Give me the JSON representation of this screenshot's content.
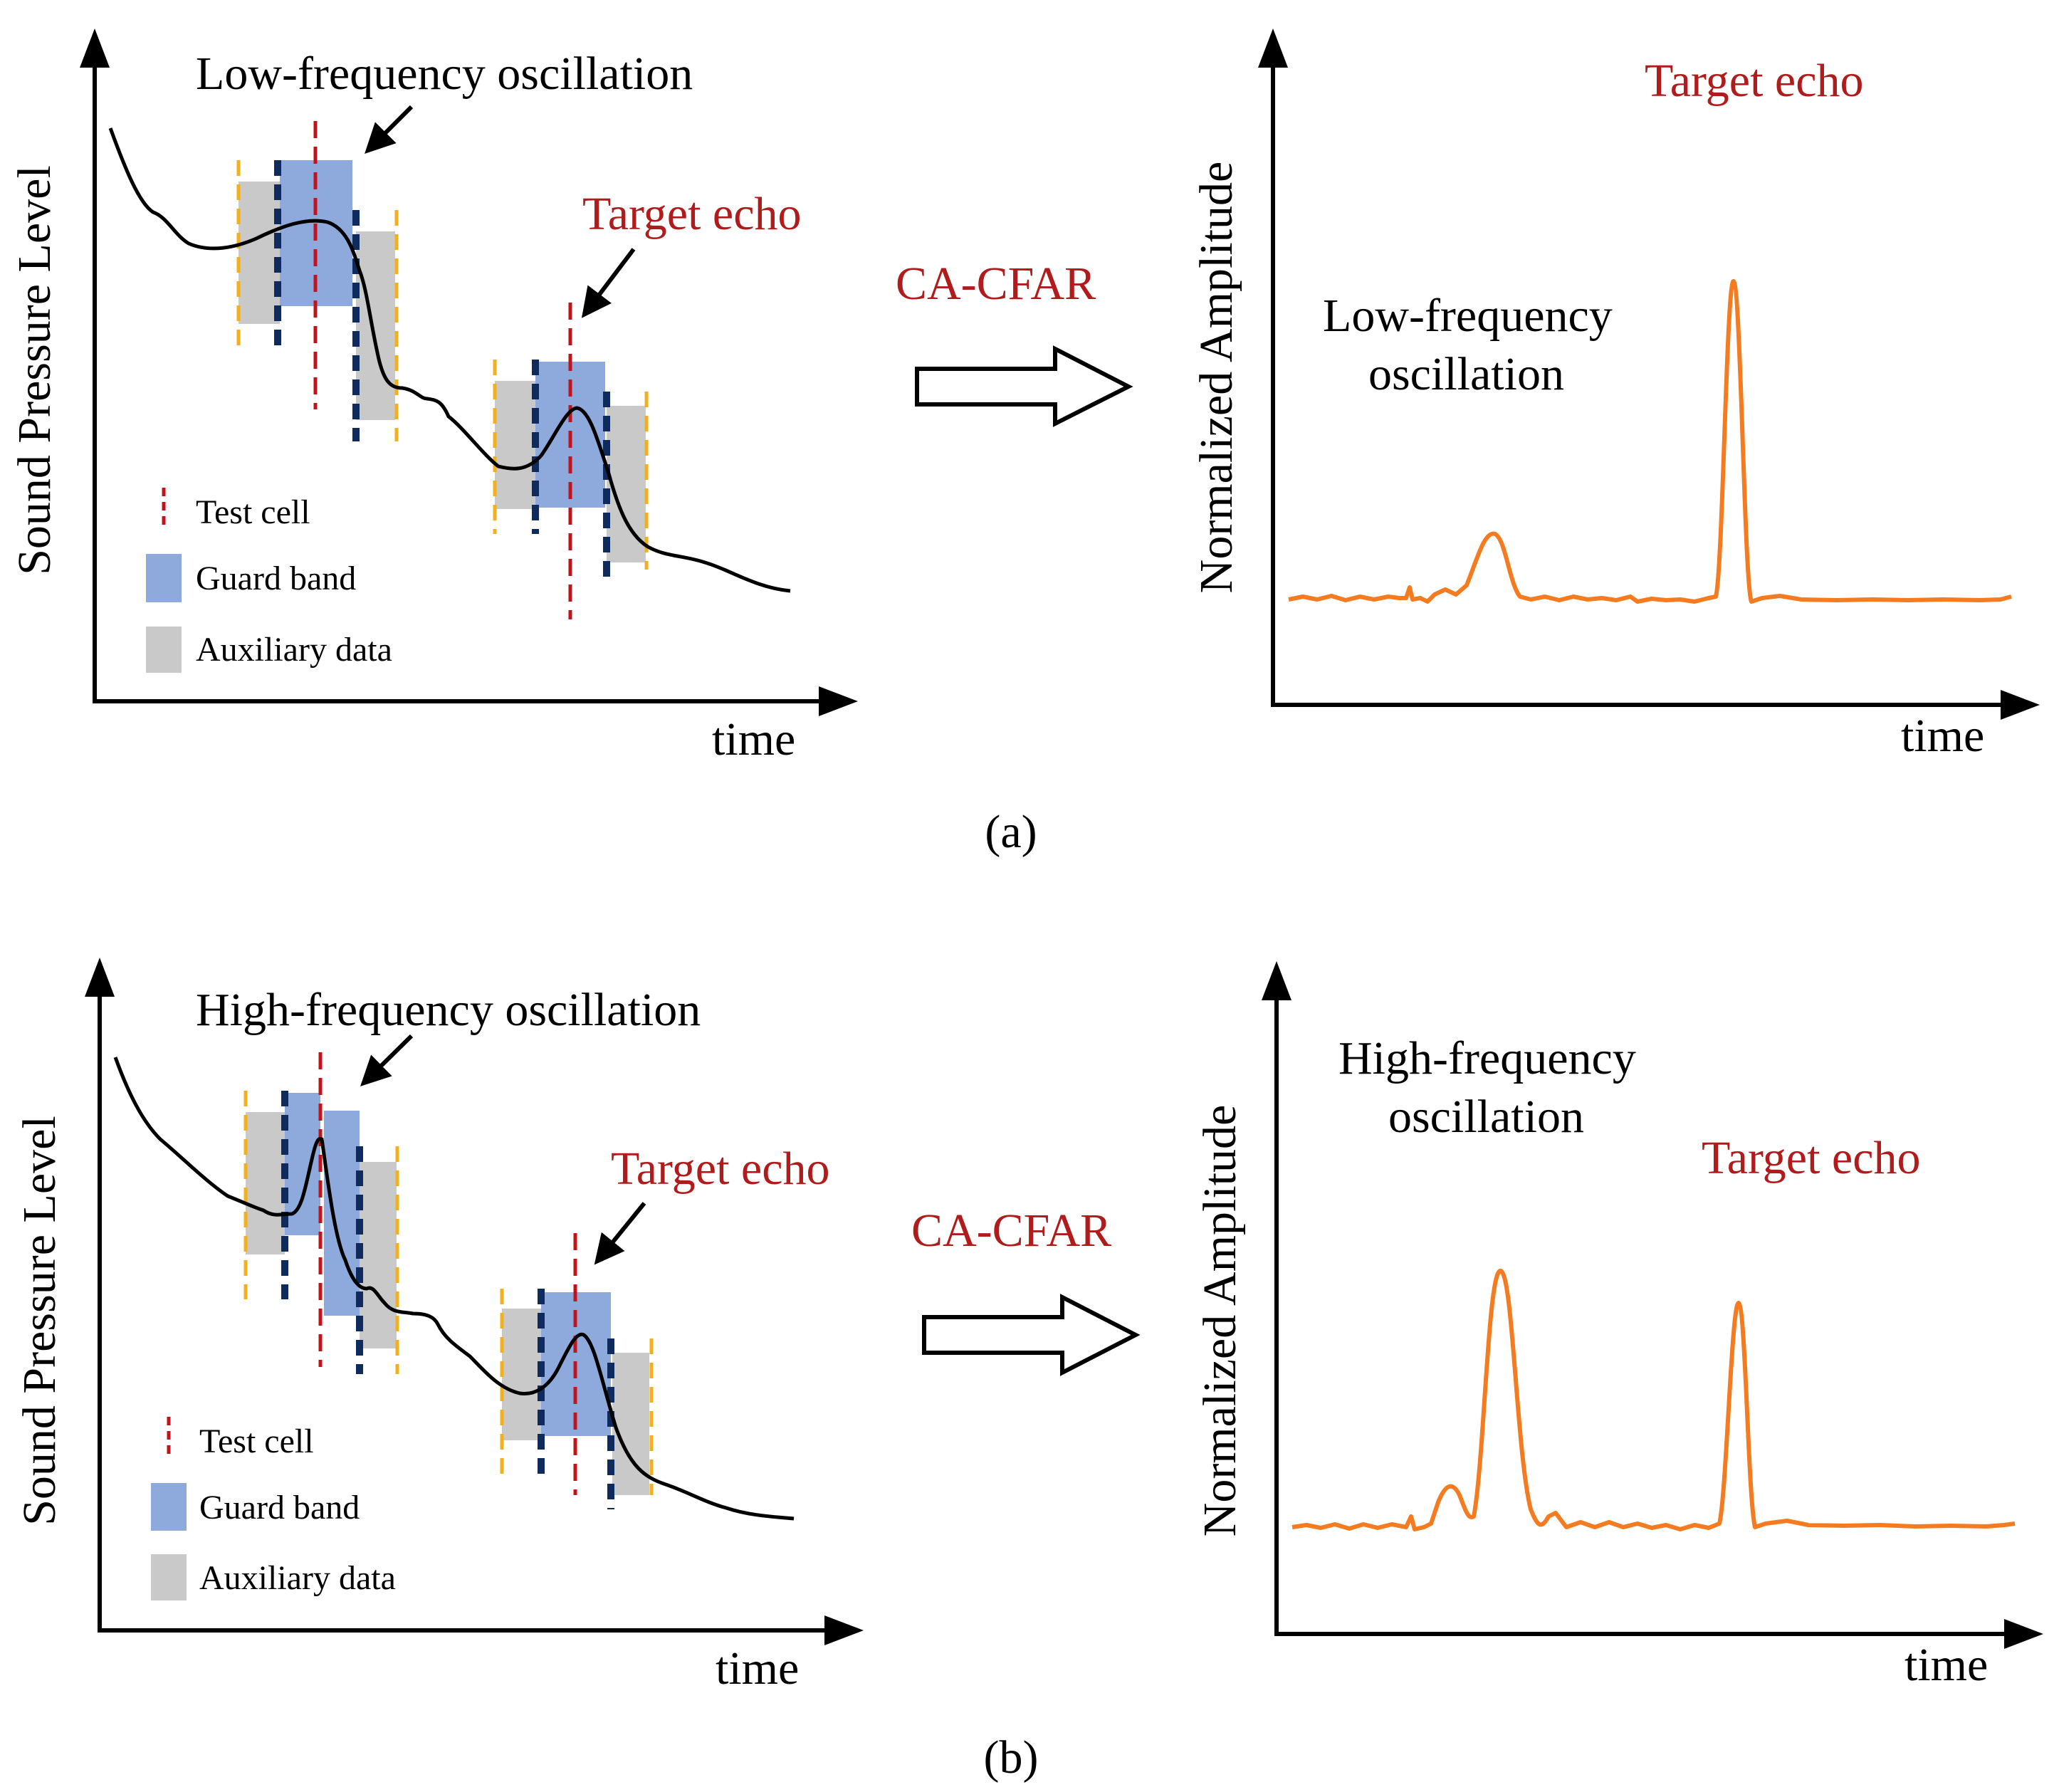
{
  "colors": {
    "guard": "#8eaadc",
    "auxiliary": "#c9c9c9",
    "test_cell": "#c0141c",
    "guard_edge": "#0f2a5c",
    "aux_edge": "#f2b01c",
    "output_curve": "#f47b20",
    "input_curve": "#000000",
    "red_text": "#b01c1c"
  },
  "panels": [
    {
      "caption": "(a)",
      "input": {
        "ylabel": "Sound Pressure Level",
        "xlabel": "time",
        "annotation": "Low-frequency oscillation",
        "target": "Target echo",
        "legend": [
          "Test cell",
          "Guard band",
          "Auxiliary data"
        ]
      },
      "method": "CA-CFAR",
      "output": {
        "ylabel": "Normalized Amplitude",
        "xlabel": "time",
        "osc_label": [
          "Low-frequency",
          "oscillation"
        ],
        "target": "Target echo"
      }
    },
    {
      "caption": "(b)",
      "input": {
        "ylabel": "Sound Pressure Level",
        "xlabel": "time",
        "annotation": "High-frequency oscillation",
        "target": "Target echo",
        "legend": [
          "Test cell",
          "Guard band",
          "Auxiliary data"
        ]
      },
      "method": "CA-CFAR",
      "output": {
        "ylabel": "Normalized Amplitude",
        "xlabel": "time",
        "osc_label": [
          "High-frequency",
          "oscillation"
        ],
        "target": "Target echo"
      }
    }
  ]
}
